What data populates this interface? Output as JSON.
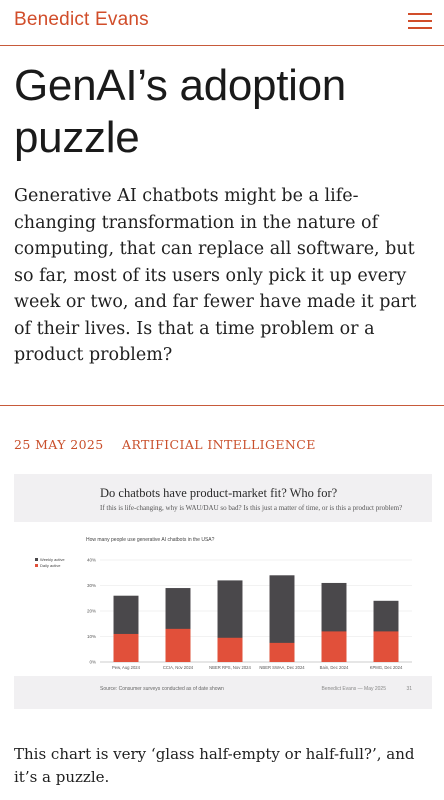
{
  "header": {
    "brand": "Benedict Evans",
    "menu_icon": "hamburger-menu-icon",
    "accent_color": "#d14d2a"
  },
  "article": {
    "title": "GenAI’s adoption puzzle",
    "dek": "Generative AI chatbots might be a life-changing transformation in the nature of computing, that can replace all software, but so far, most of its users only pick it up every week or two, and far fewer have made it part of their lives. Is that a time problem or a product problem?",
    "date": "25 MAY 2025",
    "category": "ARTIFICIAL INTELLIGENCE",
    "body_paragraph": "This chart is very ‘glass half-empty or half-full?’, and it’s a puzzle."
  },
  "figure": {
    "title": "Do chatbots have product-market fit? Who for?",
    "subtitle": "If this is life-changing, why is WAU/DAU so bad? Is this just a matter of time, or is this a product problem?",
    "footer_source": "Source: Consumer surveys conducted as of date shown",
    "credit": "Benedict Evans",
    "credit_date": "May 2025",
    "page_number": "31"
  },
  "chart_data": {
    "type": "bar",
    "title": "How many people use generative AI chatbots in the USA?",
    "categories": [
      "Pew, Aug 2024",
      "CCIA, Nov 2024",
      "NBER RPS, Nov 2024",
      "NBER SWAA, Dec 2024",
      "Bain, Dec 2024",
      "KPMG, Dec 2024"
    ],
    "series": [
      {
        "name": "Weekly active",
        "values": [
          26,
          29,
          32,
          34,
          31,
          24
        ],
        "color": "#4a484b"
      },
      {
        "name": "Daily active",
        "values": [
          11,
          13,
          9.5,
          7.5,
          12,
          12
        ],
        "color": "#e1503a"
      }
    ],
    "yticks": [
      "0%",
      "10%",
      "20%",
      "30%",
      "40%"
    ],
    "ylim": [
      0,
      40
    ],
    "grid": true,
    "legend_placement": "top-left"
  }
}
